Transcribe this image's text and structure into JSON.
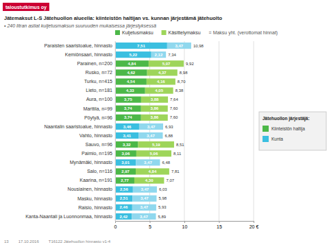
{
  "chart_data": {
    "type": "bar",
    "orientation": "horizontal",
    "stacked": true,
    "data_labels": true,
    "grid": true,
    "title": "Jätemaksut L-S Jätehuollon alueella: kiinteistön haltijan vs. kunnan järjestämä jätehuolto",
    "subtitle": "• 240 litran astiat kuljetusmaksun suuruuden mukaisessa järjestyksessä",
    "note": "= Maksu yht. (verottomat hinnat)",
    "categories": [
      "Paraisten saaristoalue, hinnasto",
      "Kemiönsaari, hinnasto",
      "Parainen, n=200",
      "Rusko, n=72",
      "Turku, n=415",
      "Lieto, n=181",
      "Aura, n=100",
      "Marttila, n=99",
      "Pöytyä, n=96",
      "Naantalin saaristoalue, hinnasto",
      "Vahto, hinnasto",
      "Sauvo, n=96",
      "Paimio, n=195",
      "Mynämäki, hinnasto",
      "Salo, n=116",
      "Kaarina, n=191",
      "Nousiainen, hinnasto",
      "Masku, hinnasto",
      "Raisio, hinnasto",
      "Kanta-Naantali ja Luonnonmaa, hinnasto"
    ],
    "series": [
      {
        "name": "Kuljetusmaksu",
        "color": "#4CB848",
        "values": [
          7.51,
          5.22,
          4.84,
          4.62,
          4.54,
          4.33,
          3.75,
          3.74,
          3.74,
          3.46,
          3.41,
          3.32,
          3.06,
          3.01,
          2.97,
          2.77,
          2.56,
          2.51,
          2.46,
          2.42
        ],
        "value_labels": [
          "7,51",
          "5,22",
          "4,84",
          "4,62",
          "4,54",
          "4,33",
          "3,75",
          "3,74",
          "3,74",
          "3,46",
          "3,41",
          "3,32",
          "3,06",
          "3,01",
          "2,97",
          "2,77",
          "2,56",
          "2,51",
          "2,46",
          "2,42"
        ],
        "colors": [
          "#3BBFE0",
          "#3BBFE0",
          "#4CB848",
          "#4CB848",
          "#4CB848",
          "#4CB848",
          "#4CB848",
          "#4CB848",
          "#4CB848",
          "#3BBFE0",
          "#3BBFE0",
          "#4CB848",
          "#4CB848",
          "#3BBFE0",
          "#4CB848",
          "#4CB848",
          "#3BBFE0",
          "#3BBFE0",
          "#3BBFE0",
          "#3BBFE0"
        ]
      },
      {
        "name": "Käsittelymaksu",
        "color": "#9ED55A",
        "values": [
          3.47,
          2.12,
          5.07,
          4.37,
          4.16,
          4.05,
          3.88,
          3.86,
          3.86,
          3.47,
          3.47,
          5.19,
          5.06,
          3.47,
          4.84,
          4.3,
          3.47,
          3.47,
          3.47,
          3.47
        ],
        "value_labels": [
          "3,47",
          "2,12",
          "5,07",
          "4,37",
          "4,16",
          "4,05",
          "3,88",
          "3,86",
          "3,86",
          "3,47",
          "3,47",
          "5,19",
          "5,06",
          "3,47",
          "4,84",
          "4,30",
          "3,47",
          "3,47",
          "3,47",
          "3,47"
        ],
        "colors": [
          "#90D8EE",
          "#90D8EE",
          "#9ED55A",
          "#9ED55A",
          "#9ED55A",
          "#9ED55A",
          "#9ED55A",
          "#9ED55A",
          "#9ED55A",
          "#90D8EE",
          "#90D8EE",
          "#9ED55A",
          "#9ED55A",
          "#90D8EE",
          "#9ED55A",
          "#9ED55A",
          "#90D8EE",
          "#90D8EE",
          "#90D8EE",
          "#90D8EE"
        ]
      }
    ],
    "totals": {
      "values": [
        10.98,
        7.34,
        9.92,
        8.98,
        8.7,
        8.38,
        7.64,
        7.6,
        7.6,
        6.93,
        6.88,
        8.51,
        8.11,
        6.48,
        7.81,
        7.07,
        6.03,
        5.98,
        5.93,
        5.89
      ],
      "value_labels": [
        "10,98",
        "7,34",
        "9,92",
        "8,98",
        "8,70",
        "8,38",
        "7,64",
        "7,60",
        "7,60",
        "6,93",
        "6,88",
        "8,51",
        "8,11",
        "6,48",
        "7,81",
        "7,07",
        "6,03",
        "5,98",
        "5,93",
        "5,89"
      ]
    },
    "legend_title": "Jätehuollon järjestäjä:",
    "groups": [
      {
        "name": "Kiinteistön haltija",
        "color": "#4CB848"
      },
      {
        "name": "Kunta",
        "color": "#3BBFE0"
      }
    ],
    "xlim": [
      0,
      20
    ],
    "xticks": [
      0,
      5,
      10,
      15,
      {
        "value": 20,
        "label": "20 €"
      }
    ],
    "annotations": [
      {
        "text": "taloustutkimus oy",
        "color": "#cc0033"
      },
      {
        "text": "13"
      },
      {
        "text": "17.10.2016"
      },
      {
        "text": "T16122 Jätehuollon hinnasto v1-4"
      }
    ]
  }
}
